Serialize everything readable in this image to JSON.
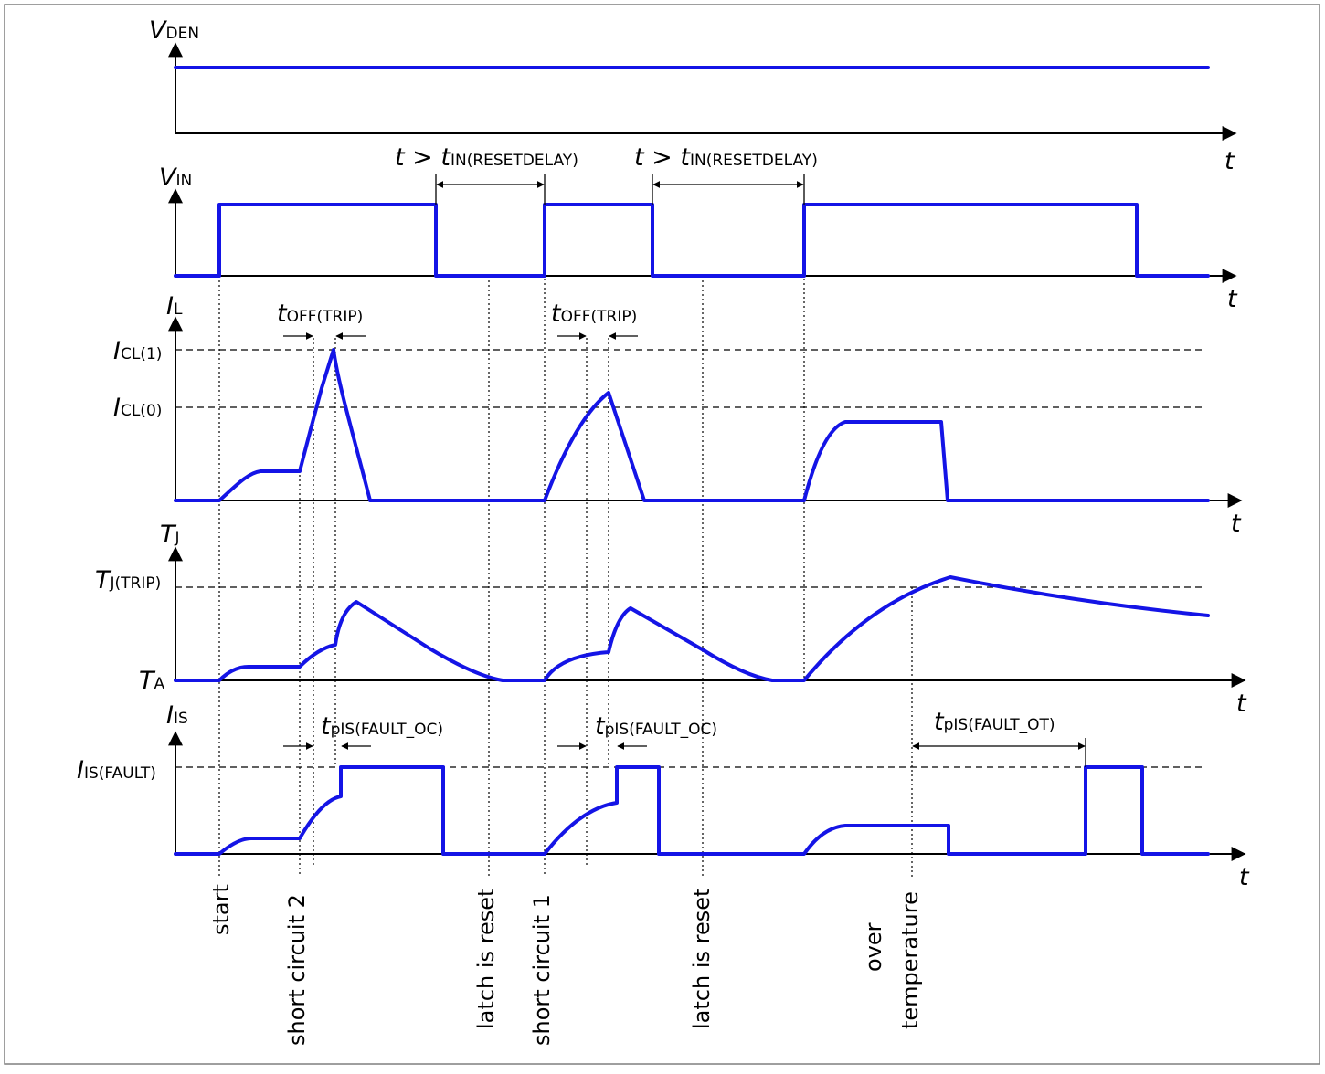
{
  "axes": {
    "vden": {
      "var": "V",
      "sub": "DEN"
    },
    "vin": {
      "var": "V",
      "sub": "IN"
    },
    "il": {
      "var": "I",
      "sub": "L"
    },
    "tj": {
      "var": "T",
      "sub": "J"
    },
    "iis": {
      "var": "I",
      "sub": "IS"
    },
    "t_label": "t"
  },
  "levels": {
    "icl1": {
      "var": "I",
      "sub": "CL(1)"
    },
    "icl0": {
      "var": "I",
      "sub": "CL(0)"
    },
    "tjtrip": {
      "var": "T",
      "sub": "J(TRIP)"
    },
    "ta": {
      "var": "T",
      "sub": "A"
    },
    "iisfault": {
      "var": "I",
      "sub": "IS(FAULT)"
    }
  },
  "timing": {
    "reset_delay": {
      "prefix": "t > ",
      "var": "t",
      "sub": "IN(RESETDELAY)"
    },
    "off_trip": {
      "var": "t",
      "sub": "OFF(TRIP)"
    },
    "fault_oc": {
      "var": "t",
      "sub": "pIS(FAULT_OC)"
    },
    "fault_ot": {
      "var": "t",
      "sub": "pIS(FAULT_OT)"
    }
  },
  "events": {
    "start": "start",
    "short_circuit_2": "short circuit 2",
    "latch_reset": "latch is reset",
    "short_circuit_1": "short circuit 1",
    "over_temp_line1": "over",
    "over_temp_line2": "temperature"
  },
  "colors": {
    "waveform": "#1414e6",
    "axes": "#000000",
    "frame": "#7f7f7f"
  }
}
